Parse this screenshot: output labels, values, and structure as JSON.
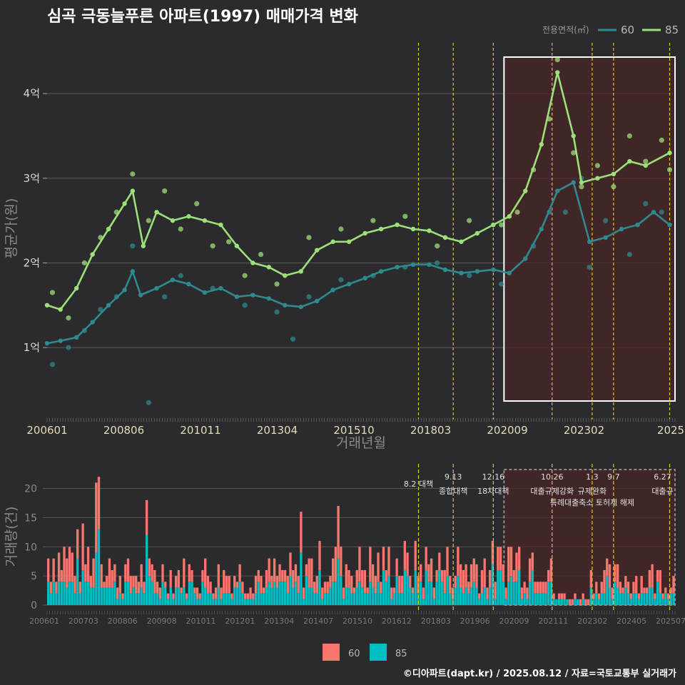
{
  "title": "심곡 극동늘푸른 아파트(1997) 매매가격 변화",
  "footer": "©디아파트(dapt.kr) / 2025.08.12 / 자료=국토교통부 실거래가",
  "colors": {
    "background": "#2b2b2d",
    "series_60_line": "#2f8a8e",
    "series_85_line": "#9de07a",
    "bar_60": "#f8766d",
    "bar_85": "#00bfc4",
    "event_line": "#e6c619",
    "highlight_box": "#ffffff",
    "highlight_fill": "#4a2626"
  },
  "chart_data": [
    {
      "type": "line",
      "title": "심곡 극동늘푸른 아파트(1997) 매매가격 변화",
      "xlabel": "거래년월",
      "ylabel": "평균가(원)",
      "x_ticks": [
        "200601",
        "200806",
        "201011",
        "201304",
        "201510",
        "201803",
        "202009",
        "202302",
        "2025"
      ],
      "y_ticks": [
        {
          "v": 1,
          "label": "1억"
        },
        {
          "v": 2,
          "label": "2억"
        },
        {
          "v": 3,
          "label": "3억"
        },
        {
          "v": 4,
          "label": "4억"
        }
      ],
      "ylim": [
        0.2,
        4.6
      ],
      "legend_title": "전용면적(㎡)",
      "legend_position": "top-right",
      "series": [
        {
          "name": "60",
          "color": "#2f8a8e",
          "points": [
            [
              "2006-01",
              1.05
            ],
            [
              "2006-06",
              1.08
            ],
            [
              "2006-12",
              1.12
            ],
            [
              "2007-06",
              1.3
            ],
            [
              "2007-12",
              1.5
            ],
            [
              "2008-06",
              1.68
            ],
            [
              "2008-09",
              1.9
            ],
            [
              "2008-12",
              1.62
            ],
            [
              "2009-06",
              1.7
            ],
            [
              "2009-12",
              1.8
            ],
            [
              "2010-06",
              1.75
            ],
            [
              "2010-12",
              1.65
            ],
            [
              "2011-06",
              1.7
            ],
            [
              "2011-12",
              1.6
            ],
            [
              "2012-06",
              1.62
            ],
            [
              "2012-12",
              1.58
            ],
            [
              "2013-06",
              1.5
            ],
            [
              "2013-12",
              1.48
            ],
            [
              "2014-06",
              1.55
            ],
            [
              "2014-12",
              1.68
            ],
            [
              "2015-06",
              1.75
            ],
            [
              "2015-12",
              1.82
            ],
            [
              "2016-06",
              1.9
            ],
            [
              "2016-12",
              1.95
            ],
            [
              "2017-06",
              1.98
            ],
            [
              "2017-12",
              1.98
            ],
            [
              "2018-06",
              1.92
            ],
            [
              "2018-12",
              1.88
            ],
            [
              "2019-06",
              1.9
            ],
            [
              "2019-12",
              1.92
            ],
            [
              "2020-06",
              1.88
            ],
            [
              "2020-12",
              2.05
            ],
            [
              "2021-06",
              2.4
            ],
            [
              "2021-12",
              2.85
            ],
            [
              "2022-06",
              2.95
            ],
            [
              "2022-12",
              2.25
            ],
            [
              "2023-06",
              2.3
            ],
            [
              "2023-12",
              2.4
            ],
            [
              "2024-06",
              2.45
            ],
            [
              "2024-12",
              2.6
            ],
            [
              "2025-06",
              2.45
            ]
          ]
        },
        {
          "name": "85",
          "color": "#9de07a",
          "points": [
            [
              "2006-01",
              1.5
            ],
            [
              "2006-06",
              1.45
            ],
            [
              "2006-12",
              1.7
            ],
            [
              "2007-06",
              2.1
            ],
            [
              "2007-12",
              2.4
            ],
            [
              "2008-06",
              2.7
            ],
            [
              "2008-09",
              2.85
            ],
            [
              "2009-01",
              2.2
            ],
            [
              "2009-06",
              2.6
            ],
            [
              "2009-12",
              2.5
            ],
            [
              "2010-06",
              2.55
            ],
            [
              "2010-12",
              2.5
            ],
            [
              "2011-06",
              2.45
            ],
            [
              "2011-12",
              2.2
            ],
            [
              "2012-06",
              2.0
            ],
            [
              "2012-12",
              1.95
            ],
            [
              "2013-06",
              1.85
            ],
            [
              "2013-12",
              1.9
            ],
            [
              "2014-06",
              2.15
            ],
            [
              "2014-12",
              2.25
            ],
            [
              "2015-06",
              2.25
            ],
            [
              "2015-12",
              2.35
            ],
            [
              "2016-06",
              2.4
            ],
            [
              "2016-12",
              2.45
            ],
            [
              "2017-06",
              2.4
            ],
            [
              "2017-12",
              2.38
            ],
            [
              "2018-06",
              2.3
            ],
            [
              "2018-12",
              2.25
            ],
            [
              "2019-06",
              2.35
            ],
            [
              "2019-12",
              2.45
            ],
            [
              "2020-06",
              2.55
            ],
            [
              "2020-12",
              2.85
            ],
            [
              "2021-06",
              3.4
            ],
            [
              "2021-12",
              4.25
            ],
            [
              "2022-06",
              3.5
            ],
            [
              "2022-09",
              2.95
            ],
            [
              "2023-03",
              3.0
            ],
            [
              "2023-09",
              3.05
            ],
            [
              "2024-03",
              3.2
            ],
            [
              "2024-09",
              3.15
            ],
            [
              "2025-06",
              3.3
            ]
          ]
        }
      ],
      "scatter_60": [
        [
          "2006-03",
          0.8
        ],
        [
          "2006-09",
          1.0
        ],
        [
          "2007-03",
          1.2
        ],
        [
          "2007-09",
          1.45
        ],
        [
          "2008-03",
          1.6
        ],
        [
          "2008-09",
          2.2
        ],
        [
          "2009-03",
          0.35
        ],
        [
          "2009-09",
          1.6
        ],
        [
          "2010-03",
          1.85
        ],
        [
          "2011-03",
          1.7
        ],
        [
          "2012-03",
          1.5
        ],
        [
          "2013-03",
          1.42
        ],
        [
          "2013-09",
          1.1
        ],
        [
          "2014-03",
          1.6
        ],
        [
          "2015-03",
          1.8
        ],
        [
          "2016-03",
          1.85
        ],
        [
          "2017-03",
          1.95
        ],
        [
          "2018-03",
          2.0
        ],
        [
          "2019-03",
          1.85
        ],
        [
          "2020-03",
          1.75
        ],
        [
          "2021-03",
          2.2
        ],
        [
          "2021-09",
          2.6
        ],
        [
          "2022-03",
          2.6
        ],
        [
          "2022-09",
          3.0
        ],
        [
          "2022-12",
          1.95
        ],
        [
          "2023-06",
          2.5
        ],
        [
          "2024-03",
          2.1
        ],
        [
          "2024-09",
          2.7
        ],
        [
          "2025-03",
          2.6
        ]
      ],
      "scatter_85": [
        [
          "2006-03",
          1.65
        ],
        [
          "2006-09",
          1.35
        ],
        [
          "2007-03",
          2.0
        ],
        [
          "2007-09",
          2.3
        ],
        [
          "2008-03",
          2.6
        ],
        [
          "2008-09",
          3.05
        ],
        [
          "2009-03",
          2.5
        ],
        [
          "2009-09",
          2.85
        ],
        [
          "2010-03",
          2.4
        ],
        [
          "2010-09",
          2.7
        ],
        [
          "2011-03",
          2.2
        ],
        [
          "2011-09",
          2.25
        ],
        [
          "2012-03",
          1.85
        ],
        [
          "2012-09",
          2.1
        ],
        [
          "2013-03",
          1.75
        ],
        [
          "2014-03",
          2.3
        ],
        [
          "2015-03",
          2.4
        ],
        [
          "2016-03",
          2.5
        ],
        [
          "2017-03",
          2.55
        ],
        [
          "2018-03",
          2.2
        ],
        [
          "2019-03",
          2.5
        ],
        [
          "2020-03",
          2.45
        ],
        [
          "2020-09",
          2.6
        ],
        [
          "2021-03",
          3.1
        ],
        [
          "2021-09",
          3.7
        ],
        [
          "2021-12",
          4.4
        ],
        [
          "2022-06",
          3.3
        ],
        [
          "2022-09",
          2.9
        ],
        [
          "2023-03",
          3.15
        ],
        [
          "2023-09",
          2.9
        ],
        [
          "2024-03",
          3.5
        ],
        [
          "2024-09",
          3.2
        ],
        [
          "2025-03",
          3.45
        ],
        [
          "2025-06",
          3.1
        ]
      ],
      "highlight_range": [
        "2020-04",
        "2025-08"
      ]
    },
    {
      "type": "bar",
      "stacked": true,
      "ylabel": "거래량(건)",
      "y_ticks": [
        0,
        5,
        10,
        15,
        20
      ],
      "ylim": [
        0,
        23
      ],
      "x_ticks": [
        "200601",
        "200703",
        "200806",
        "200908",
        "201011",
        "201201",
        "201304",
        "201407",
        "201510",
        "201612",
        "201803",
        "201906",
        "202009",
        "202111",
        "202302",
        "202405",
        "202507"
      ],
      "legend_position": "bottom",
      "series": [
        {
          "name": "60",
          "color": "#f8766d"
        },
        {
          "name": "85",
          "color": "#00bfc4"
        }
      ],
      "highlight_range": [
        "2020-04",
        "2025-08"
      ]
    }
  ],
  "events": [
    {
      "date": "2017-08",
      "line1": "8.2 대책",
      "line2": ""
    },
    {
      "date": "2018-09",
      "line1": "9.13",
      "line2": "종합대책"
    },
    {
      "date": "2019-12",
      "line1": "12.16",
      "line2": "18차대책"
    },
    {
      "date": "2021-10",
      "line1": "10.26",
      "line2": "대출규제강화"
    },
    {
      "date": "2023-01",
      "line1": "1.3",
      "line2": "규제완화"
    },
    {
      "date": "2023-09",
      "line1": "9.7",
      "line2": "특례대출축소 토허제 해제"
    },
    {
      "date": "2025-06",
      "line1": "6.27",
      "line2": "대출규"
    }
  ],
  "legend_bottom": [
    "60",
    "85"
  ]
}
